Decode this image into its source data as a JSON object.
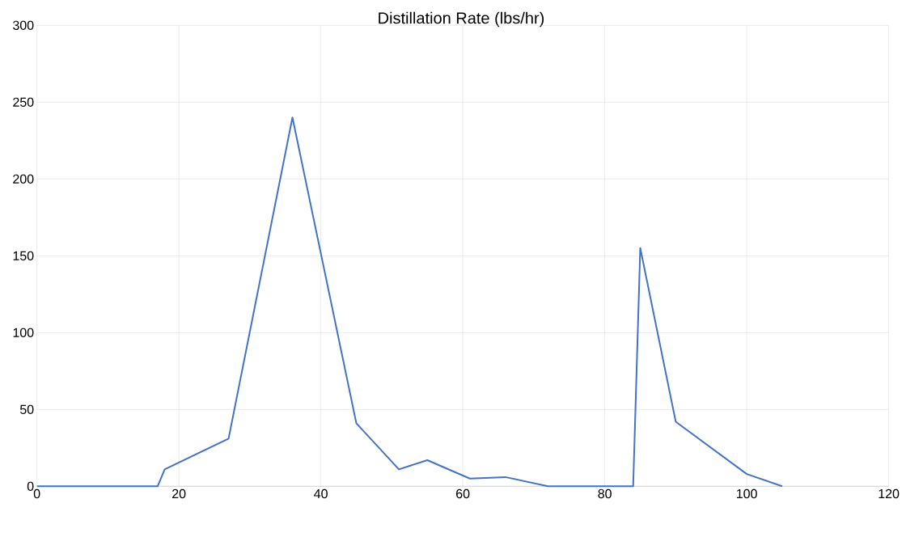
{
  "chart_data": {
    "type": "line",
    "title": "Distillation Rate (lbs/hr)",
    "x": [
      0,
      17,
      18,
      27,
      36,
      45,
      51,
      55,
      61,
      66,
      72,
      84,
      85,
      90,
      100,
      105
    ],
    "series": [
      {
        "color": "#4472c4",
        "values": [
          0,
          0,
          11,
          31,
          240,
          41,
          11,
          17,
          5,
          6,
          0,
          0,
          155,
          42,
          8,
          0
        ]
      }
    ],
    "xlim": [
      0,
      120
    ],
    "xticks": [
      0,
      20,
      40,
      60,
      80,
      100,
      120
    ],
    "ylim": [
      0,
      300
    ],
    "yticks": [
      0,
      50,
      100,
      150,
      200,
      250,
      300
    ],
    "grid": true
  }
}
